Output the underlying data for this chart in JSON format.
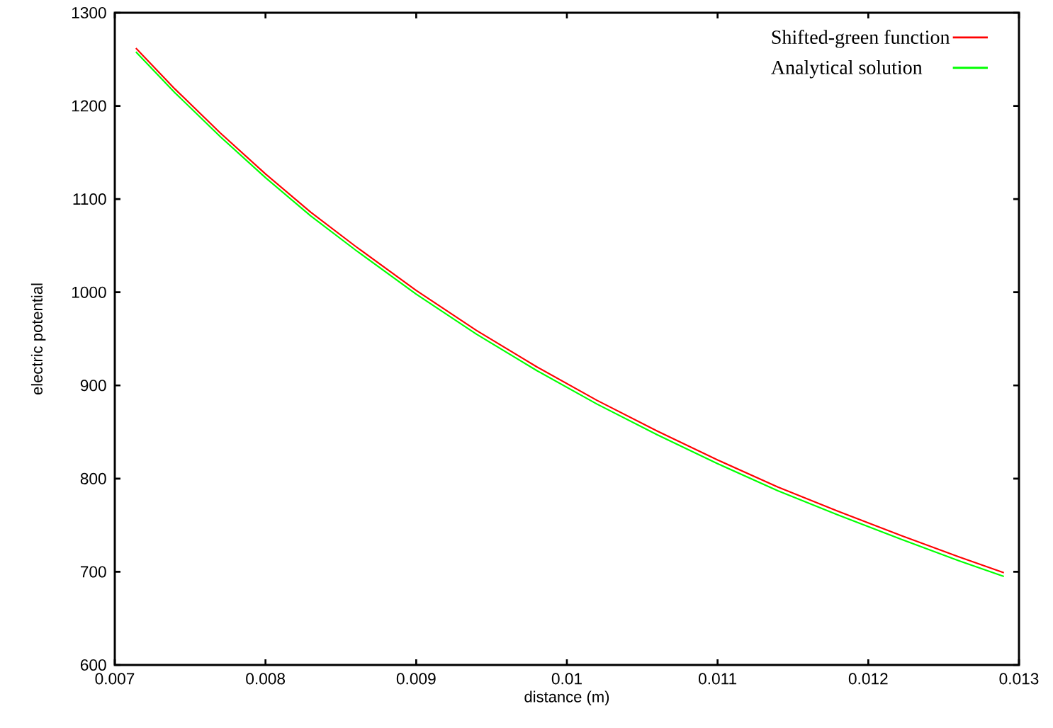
{
  "chart_data": {
    "type": "line",
    "xlabel": "distance (m)",
    "ylabel": "electric potential",
    "x": [
      0.00714,
      0.0074,
      0.0077,
      0.008,
      0.0083,
      0.0086,
      0.009,
      0.0094,
      0.0098,
      0.0102,
      0.0106,
      0.011,
      0.0114,
      0.0118,
      0.0122,
      0.0126,
      0.0129
    ],
    "series": [
      {
        "name": "Shifted-green function",
        "color": "#ff0000",
        "values": [
          1262,
          1218,
          1171,
          1127,
          1086,
          1049,
          1002,
          959,
          920,
          884,
          851,
          820,
          791,
          765,
          740,
          716,
          699
        ]
      },
      {
        "name": "Analytical solution",
        "color": "#00ff00",
        "values": [
          1258,
          1214,
          1167,
          1123,
          1082,
          1045,
          998,
          955,
          916,
          880,
          847,
          816,
          787,
          761,
          736,
          712,
          695
        ]
      }
    ],
    "xlim": [
      0.007,
      0.013
    ],
    "ylim": [
      600,
      1300
    ],
    "xticks": [
      0.007,
      0.008,
      0.009,
      0.01,
      0.011,
      0.012,
      0.013
    ],
    "yticks": [
      600,
      700,
      800,
      900,
      1000,
      1100,
      1200,
      1300
    ],
    "legend": "top right"
  }
}
